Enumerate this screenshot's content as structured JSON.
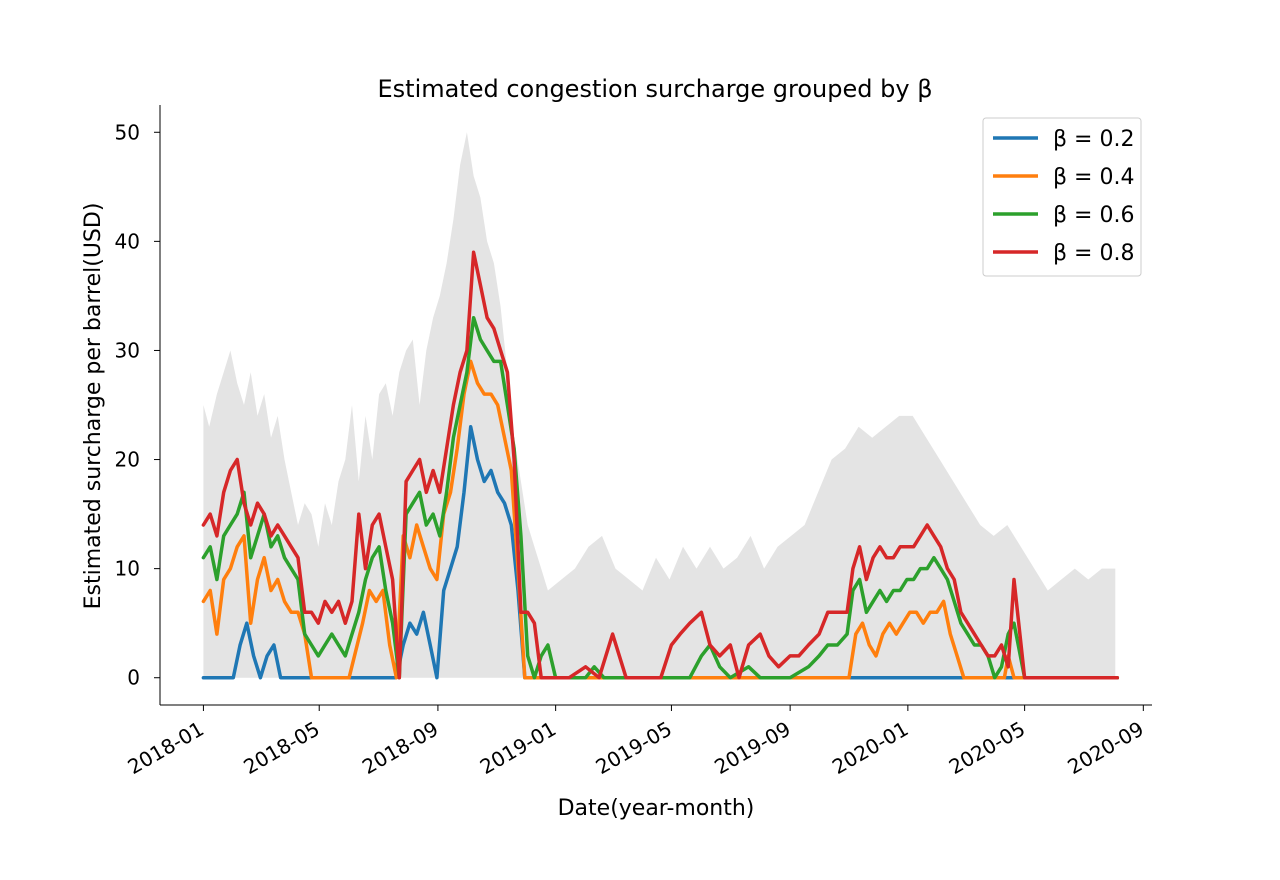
{
  "chart_data": {
    "type": "line",
    "title": "Estimated congestion surcharge grouped by β",
    "xlabel": "Date(year-month)",
    "ylabel": "Estimated surcharge per barrel(USD)",
    "x_tick_labels": [
      "2018-01",
      "2018-05",
      "2018-09",
      "2019-01",
      "2019-05",
      "2019-09",
      "2020-01",
      "2020-05",
      "2020-09"
    ],
    "y_tick_labels": [
      "0",
      "10",
      "20",
      "30",
      "40",
      "50"
    ],
    "ylim": [
      -2.5,
      52.5
    ],
    "xlim": [
      "2017-11-17",
      "2020-09-10"
    ],
    "legend_position": "top-right",
    "band": {
      "color": "#e4e4e4",
      "x": [
        "2018-01-01",
        "2018-01-07",
        "2018-01-15",
        "2018-01-22",
        "2018-01-29",
        "2018-02-05",
        "2018-02-12",
        "2018-02-19",
        "2018-02-26",
        "2018-03-05",
        "2018-03-12",
        "2018-03-19",
        "2018-03-26",
        "2018-04-02",
        "2018-04-09",
        "2018-04-16",
        "2018-04-23",
        "2018-04-30",
        "2018-05-07",
        "2018-05-14",
        "2018-05-21",
        "2018-05-28",
        "2018-06-04",
        "2018-06-11",
        "2018-06-18",
        "2018-06-25",
        "2018-07-02",
        "2018-07-09",
        "2018-07-16",
        "2018-07-23",
        "2018-07-30",
        "2018-08-06",
        "2018-08-13",
        "2018-08-20",
        "2018-08-27",
        "2018-09-03",
        "2018-09-10",
        "2018-09-17",
        "2018-09-24",
        "2018-10-01",
        "2018-10-08",
        "2018-10-15",
        "2018-10-22",
        "2018-10-29",
        "2018-11-05",
        "2018-11-12",
        "2018-11-19",
        "2018-11-26",
        "2018-12-03",
        "2018-12-10",
        "2018-12-17",
        "2018-12-24",
        "2019-01-07",
        "2019-01-21",
        "2019-02-04",
        "2019-02-18",
        "2019-03-04",
        "2019-03-18",
        "2019-04-01",
        "2019-04-15",
        "2019-04-29",
        "2019-05-13",
        "2019-05-27",
        "2019-06-10",
        "2019-06-24",
        "2019-07-08",
        "2019-07-22",
        "2019-08-05",
        "2019-08-19",
        "2019-09-02",
        "2019-09-16",
        "2019-09-30",
        "2019-10-14",
        "2019-10-28",
        "2019-11-11",
        "2019-11-25",
        "2019-12-09",
        "2019-12-23",
        "2020-01-06",
        "2020-01-20",
        "2020-02-03",
        "2020-02-17",
        "2020-03-02",
        "2020-03-16",
        "2020-03-30",
        "2020-04-13",
        "2020-04-27",
        "2020-05-11",
        "2020-05-25",
        "2020-06-08",
        "2020-06-22",
        "2020-07-06",
        "2020-07-20",
        "2020-08-03"
      ],
      "y": [
        25,
        23,
        26,
        28,
        30,
        27,
        25,
        28,
        24,
        26,
        22,
        24,
        20,
        17,
        14,
        16,
        15,
        12,
        16,
        14,
        18,
        20,
        25,
        18,
        24,
        20,
        26,
        27,
        24,
        28,
        30,
        31,
        25,
        30,
        33,
        35,
        38,
        42,
        47,
        50,
        46,
        44,
        40,
        38,
        34,
        28,
        22,
        18,
        14,
        12,
        10,
        8,
        9,
        10,
        12,
        13,
        10,
        9,
        8,
        11,
        9,
        12,
        10,
        12,
        10,
        11,
        13,
        10,
        12,
        13,
        14,
        17,
        20,
        21,
        23,
        22,
        23,
        24,
        24,
        22,
        20,
        18,
        16,
        14,
        13,
        14,
        12,
        10,
        8,
        9,
        10,
        9,
        10,
        10
      ]
    },
    "series": [
      {
        "name": "β = 0.2",
        "color": "#1f77b4",
        "x": [
          "2018-01-01",
          "2018-02-01",
          "2018-02-08",
          "2018-02-15",
          "2018-02-22",
          "2018-03-01",
          "2018-03-08",
          "2018-03-15",
          "2018-03-22",
          "2018-04-01",
          "2018-05-01",
          "2018-06-01",
          "2018-07-01",
          "2018-07-20",
          "2018-07-27",
          "2018-08-03",
          "2018-08-10",
          "2018-08-17",
          "2018-08-24",
          "2018-08-31",
          "2018-09-07",
          "2018-09-14",
          "2018-09-21",
          "2018-09-28",
          "2018-10-05",
          "2018-10-12",
          "2018-10-19",
          "2018-10-26",
          "2018-11-02",
          "2018-11-09",
          "2018-11-16",
          "2018-11-23",
          "2018-11-30",
          "2018-12-07",
          "2019-01-01",
          "2019-06-01",
          "2019-12-01",
          "2020-05-01",
          "2020-08-05"
        ],
        "y": [
          0,
          0,
          3,
          5,
          2,
          0,
          2,
          3,
          0,
          0,
          0,
          0,
          0,
          0,
          3,
          5,
          4,
          6,
          3,
          0,
          8,
          10,
          12,
          17,
          23,
          20,
          18,
          19,
          17,
          16,
          14,
          8,
          0,
          0,
          0,
          0,
          0,
          0,
          0
        ]
      },
      {
        "name": "β = 0.4",
        "color": "#ff7f0e",
        "x": [
          "2018-01-01",
          "2018-01-08",
          "2018-01-15",
          "2018-01-22",
          "2018-01-29",
          "2018-02-05",
          "2018-02-12",
          "2018-02-19",
          "2018-02-26",
          "2018-03-05",
          "2018-03-12",
          "2018-03-19",
          "2018-03-26",
          "2018-04-02",
          "2018-04-09",
          "2018-04-16",
          "2018-04-23",
          "2018-06-01",
          "2018-06-15",
          "2018-06-22",
          "2018-06-29",
          "2018-07-06",
          "2018-07-13",
          "2018-07-20",
          "2018-07-27",
          "2018-08-03",
          "2018-08-10",
          "2018-08-17",
          "2018-08-24",
          "2018-08-31",
          "2018-09-07",
          "2018-09-14",
          "2018-09-21",
          "2018-09-28",
          "2018-10-05",
          "2018-10-12",
          "2018-10-19",
          "2018-10-26",
          "2018-11-02",
          "2018-11-09",
          "2018-11-16",
          "2018-11-23",
          "2018-11-30",
          "2018-12-07",
          "2019-01-01",
          "2019-11-01",
          "2019-11-08",
          "2019-11-15",
          "2019-11-22",
          "2019-11-29",
          "2019-12-06",
          "2019-12-13",
          "2019-12-20",
          "2019-12-27",
          "2020-01-03",
          "2020-01-10",
          "2020-01-17",
          "2020-01-24",
          "2020-01-31",
          "2020-02-07",
          "2020-02-14",
          "2020-02-21",
          "2020-02-28",
          "2020-03-06",
          "2020-03-13",
          "2020-04-01",
          "2020-04-10",
          "2020-04-14",
          "2020-04-20",
          "2020-05-01",
          "2020-08-05"
        ],
        "y": [
          7,
          8,
          4,
          9,
          10,
          12,
          13,
          5,
          9,
          11,
          8,
          9,
          7,
          6,
          6,
          4,
          0,
          0,
          5,
          8,
          7,
          8,
          3,
          0,
          13,
          11,
          14,
          12,
          10,
          9,
          15,
          17,
          21,
          26,
          29,
          27,
          26,
          26,
          25,
          22,
          19,
          10,
          0,
          0,
          0,
          0,
          4,
          5,
          3,
          2,
          4,
          5,
          4,
          5,
          6,
          6,
          5,
          6,
          6,
          7,
          4,
          2,
          0,
          0,
          0,
          0,
          0,
          2,
          0,
          0,
          0
        ]
      },
      {
        "name": "β = 0.6",
        "color": "#2ca02c",
        "x": [
          "2018-01-01",
          "2018-01-08",
          "2018-01-15",
          "2018-01-22",
          "2018-01-29",
          "2018-02-05",
          "2018-02-12",
          "2018-02-19",
          "2018-02-26",
          "2018-03-05",
          "2018-03-12",
          "2018-03-19",
          "2018-03-26",
          "2018-04-02",
          "2018-04-09",
          "2018-04-16",
          "2018-04-23",
          "2018-04-30",
          "2018-05-07",
          "2018-05-14",
          "2018-05-21",
          "2018-05-28",
          "2018-06-04",
          "2018-06-11",
          "2018-06-18",
          "2018-06-25",
          "2018-07-02",
          "2018-07-09",
          "2018-07-16",
          "2018-07-23",
          "2018-07-30",
          "2018-08-06",
          "2018-08-13",
          "2018-08-20",
          "2018-08-27",
          "2018-09-03",
          "2018-09-10",
          "2018-09-17",
          "2018-09-24",
          "2018-10-01",
          "2018-10-08",
          "2018-10-15",
          "2018-10-22",
          "2018-10-29",
          "2018-11-05",
          "2018-11-12",
          "2018-11-19",
          "2018-11-26",
          "2018-12-03",
          "2018-12-10",
          "2018-12-17",
          "2018-12-24",
          "2019-01-01",
          "2019-02-01",
          "2019-02-10",
          "2019-02-20",
          "2019-03-01",
          "2019-05-10",
          "2019-05-20",
          "2019-06-01",
          "2019-06-10",
          "2019-06-20",
          "2019-07-01",
          "2019-07-20",
          "2019-08-01",
          "2019-08-20",
          "2019-09-01",
          "2019-09-20",
          "2019-10-01",
          "2019-10-10",
          "2019-10-20",
          "2019-10-30",
          "2019-11-05",
          "2019-11-12",
          "2019-11-19",
          "2019-11-26",
          "2019-12-03",
          "2019-12-10",
          "2019-12-17",
          "2019-12-24",
          "2019-12-31",
          "2020-01-07",
          "2020-01-14",
          "2020-01-21",
          "2020-01-28",
          "2020-02-04",
          "2020-02-11",
          "2020-02-18",
          "2020-02-25",
          "2020-03-03",
          "2020-03-10",
          "2020-03-17",
          "2020-03-24",
          "2020-03-31",
          "2020-04-07",
          "2020-04-14",
          "2020-04-20",
          "2020-05-01",
          "2020-08-05"
        ],
        "y": [
          11,
          12,
          9,
          13,
          14,
          15,
          17,
          11,
          13,
          15,
          12,
          13,
          11,
          10,
          9,
          4,
          3,
          2,
          3,
          4,
          3,
          2,
          4,
          6,
          9,
          11,
          12,
          8,
          5,
          0,
          15,
          16,
          17,
          14,
          15,
          13,
          17,
          22,
          25,
          28,
          33,
          31,
          30,
          29,
          29,
          25,
          21,
          13,
          2,
          0,
          2,
          3,
          0,
          0,
          1,
          0,
          0,
          0,
          0,
          2,
          3,
          1,
          0,
          1,
          0,
          0,
          0,
          1,
          2,
          3,
          3,
          4,
          8,
          9,
          6,
          7,
          8,
          7,
          8,
          8,
          9,
          9,
          10,
          10,
          11,
          10,
          9,
          7,
          5,
          4,
          3,
          3,
          2,
          0,
          1,
          4,
          5,
          0,
          0
        ]
      },
      {
        "name": "β = 0.8",
        "color": "#d62728",
        "x": [
          "2018-01-01",
          "2018-01-08",
          "2018-01-15",
          "2018-01-22",
          "2018-01-29",
          "2018-02-05",
          "2018-02-12",
          "2018-02-19",
          "2018-02-26",
          "2018-03-05",
          "2018-03-12",
          "2018-03-19",
          "2018-03-26",
          "2018-04-02",
          "2018-04-09",
          "2018-04-16",
          "2018-04-23",
          "2018-04-30",
          "2018-05-07",
          "2018-05-14",
          "2018-05-21",
          "2018-05-28",
          "2018-06-04",
          "2018-06-11",
          "2018-06-18",
          "2018-06-25",
          "2018-07-02",
          "2018-07-09",
          "2018-07-16",
          "2018-07-23",
          "2018-07-30",
          "2018-08-06",
          "2018-08-13",
          "2018-08-20",
          "2018-08-27",
          "2018-09-03",
          "2018-09-10",
          "2018-09-17",
          "2018-09-24",
          "2018-10-01",
          "2018-10-08",
          "2018-10-15",
          "2018-10-22",
          "2018-10-29",
          "2018-11-05",
          "2018-11-12",
          "2018-11-19",
          "2018-11-26",
          "2018-12-03",
          "2018-12-10",
          "2018-12-17",
          "2018-12-24",
          "2019-01-01",
          "2019-01-15",
          "2019-02-01",
          "2019-02-15",
          "2019-03-01",
          "2019-03-15",
          "2019-04-01",
          "2019-04-20",
          "2019-05-01",
          "2019-05-10",
          "2019-05-20",
          "2019-06-01",
          "2019-06-10",
          "2019-06-20",
          "2019-07-01",
          "2019-07-10",
          "2019-07-20",
          "2019-08-01",
          "2019-08-10",
          "2019-08-20",
          "2019-09-01",
          "2019-09-10",
          "2019-09-20",
          "2019-10-01",
          "2019-10-10",
          "2019-10-20",
          "2019-10-30",
          "2019-11-05",
          "2019-11-12",
          "2019-11-19",
          "2019-11-26",
          "2019-12-03",
          "2019-12-10",
          "2019-12-17",
          "2019-12-24",
          "2019-12-31",
          "2020-01-07",
          "2020-01-14",
          "2020-01-21",
          "2020-01-28",
          "2020-02-04",
          "2020-02-11",
          "2020-02-18",
          "2020-02-25",
          "2020-03-03",
          "2020-03-10",
          "2020-03-17",
          "2020-03-24",
          "2020-03-31",
          "2020-04-07",
          "2020-04-14",
          "2020-04-20",
          "2020-05-01",
          "2020-08-05"
        ],
        "y": [
          14,
          15,
          13,
          17,
          19,
          20,
          16,
          14,
          16,
          15,
          13,
          14,
          13,
          12,
          11,
          6,
          6,
          5,
          7,
          6,
          7,
          5,
          7,
          15,
          10,
          14,
          15,
          12,
          9,
          0,
          18,
          19,
          20,
          17,
          19,
          17,
          21,
          25,
          28,
          30,
          39,
          36,
          33,
          32,
          30,
          28,
          20,
          6,
          6,
          5,
          0,
          0,
          0,
          0,
          1,
          0,
          4,
          0,
          0,
          0,
          3,
          4,
          5,
          6,
          3,
          2,
          3,
          0,
          3,
          4,
          2,
          1,
          2,
          2,
          3,
          4,
          6,
          6,
          6,
          10,
          12,
          9,
          11,
          12,
          11,
          11,
          12,
          12,
          12,
          13,
          14,
          13,
          12,
          10,
          9,
          6,
          5,
          4,
          3,
          2,
          2,
          3,
          1,
          9,
          0,
          0
        ]
      }
    ]
  }
}
